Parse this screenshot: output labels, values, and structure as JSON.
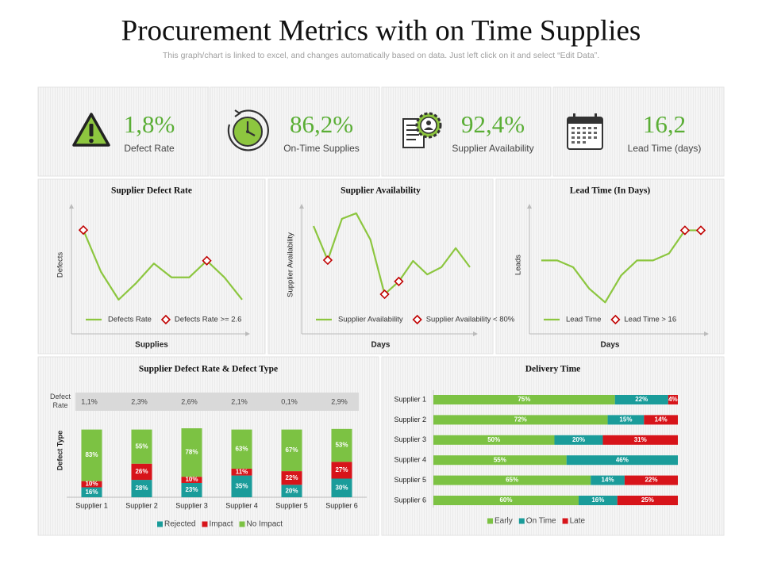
{
  "header": {
    "title": "Procurement Metrics with on Time Supplies",
    "subtitle": "This graph/chart is linked to excel, and changes automatically based on data. Just left click on it and select “Edit Data”."
  },
  "kpis": [
    {
      "value": "1,8%",
      "label": "Defect Rate"
    },
    {
      "value": "86,2%",
      "label": "On-Time Supplies"
    },
    {
      "value": "92,4%",
      "label": "Supplier Availability"
    },
    {
      "value": "16,2",
      "label": "Lead Time (days)"
    }
  ],
  "chart_data": [
    {
      "type": "line",
      "title": "Supplier Defect Rate",
      "x_label": "Supplies",
      "y_label": "Defects",
      "ylim": [
        0,
        4.5
      ],
      "series": [
        {
          "name": "Defects Rate",
          "color": "#8cc63f",
          "values": [
            3.7,
            2.2,
            1.2,
            1.8,
            2.5,
            2.0,
            2.0,
            2.6,
            2.0,
            1.2
          ]
        },
        {
          "name": "Defects Rate >= 2.6",
          "color": "#c00000",
          "marker": "diamond",
          "values": [
            3.7,
            null,
            null,
            null,
            null,
            null,
            null,
            2.6,
            null,
            null
          ]
        }
      ]
    },
    {
      "type": "line",
      "title": "Supplier Availability",
      "x_label": "Days",
      "y_label": "Supplier Availability",
      "ylim": [
        50,
        100
      ],
      "series": [
        {
          "name": "Supplier Availability",
          "color": "#8cc63f",
          "values": [
            92.7,
            79.1,
            95.6,
            97.8,
            87.3,
            65.5,
            70.6,
            78.8,
            73.4,
            76.3,
            83.9,
            76.3
          ]
        },
        {
          "name": "Supplier Availability < 80%",
          "color": "#c00000",
          "marker": "diamond",
          "values": [
            null,
            79.1,
            null,
            null,
            null,
            65.5,
            70.6,
            null,
            null,
            null,
            null,
            null
          ]
        }
      ]
    },
    {
      "type": "line",
      "title": "Lead Time (In Days)",
      "x_label": "Days",
      "y_label": "Leads",
      "ylim": [
        0,
        20
      ],
      "series": [
        {
          "name": "Lead Time",
          "color": "#8cc63f",
          "values": [
            11.6,
            11.6,
            10.5,
            7.1,
            4.9,
            9.2,
            11.6,
            11.6,
            12.7,
            16.4,
            16.4
          ]
        },
        {
          "name": "Lead Time > 16",
          "color": "#c00000",
          "marker": "diamond",
          "values": [
            null,
            null,
            null,
            null,
            null,
            null,
            null,
            null,
            null,
            16.4,
            16.4
          ]
        }
      ]
    },
    {
      "type": "stacked-bar",
      "title": "Supplier Defect Rate & Defect Type",
      "y_label": "Defect Type",
      "ylim": [
        0,
        120
      ],
      "categories": [
        "Supplier 1",
        "Supplier 2",
        "Supplier 3",
        "Supplier 4",
        "Supplier 5",
        "Supplier 6"
      ],
      "table": {
        "label": "Defect Rate",
        "cells": [
          "1,1%",
          "2,3%",
          "2,6%",
          "2,1%",
          "0,1%",
          "2,9%"
        ]
      },
      "series": [
        {
          "name": "Rejected",
          "color": "#1a9c9a",
          "values": [
            16,
            28,
            23,
            35,
            20,
            30
          ],
          "value_labels": [
            "16%",
            "28%",
            "23%",
            "35%",
            "20%",
            "30%"
          ]
        },
        {
          "name": "Impact",
          "color": "#d7141a",
          "values": [
            10,
            26,
            10,
            11,
            22,
            27
          ],
          "value_labels": [
            "10%",
            "26%",
            "10%",
            "11%",
            "22%",
            "27%"
          ]
        },
        {
          "name": "No Impact",
          "color": "#7cc243",
          "values": [
            83,
            55,
            78,
            63,
            67,
            53
          ],
          "value_labels": [
            "83%",
            "55%",
            "78%",
            "63%",
            "67%",
            "53%"
          ]
        }
      ]
    },
    {
      "type": "stacked-barh",
      "title": "Delivery Time",
      "xlim": [
        0,
        101
      ],
      "categories": [
        "Supplier 1",
        "Supplier 2",
        "Supplier 3",
        "Supplier 4",
        "Supplier 5",
        "Supplier 6"
      ],
      "series": [
        {
          "name": "Early",
          "color": "#7cc243",
          "values": [
            75,
            72,
            50,
            55,
            65,
            60
          ],
          "value_labels": [
            "75%",
            "72%",
            "50%",
            "55%",
            "65%",
            "60%"
          ]
        },
        {
          "name": "On Time",
          "color": "#1a9c9a",
          "values": [
            22,
            15,
            20,
            46,
            14,
            16
          ],
          "value_labels": [
            "22%",
            "15%",
            "20%",
            "46%",
            "14%",
            "16%"
          ]
        },
        {
          "name": "Late",
          "color": "#d7141a",
          "values": [
            4,
            14,
            31,
            null,
            22,
            25
          ],
          "value_labels": [
            "4%",
            "14%",
            "31%",
            null,
            "22%",
            "25%"
          ]
        }
      ]
    }
  ]
}
